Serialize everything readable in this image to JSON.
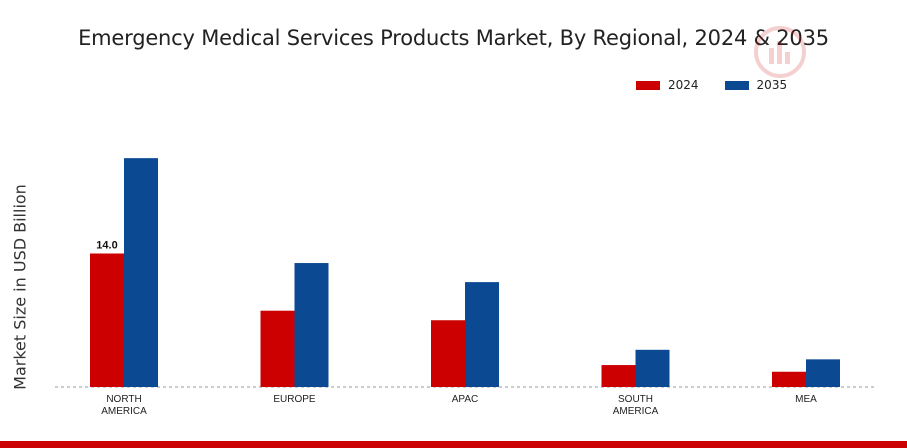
{
  "colors": {
    "series_2024": "#cc0000",
    "series_2035": "#0b4a92",
    "footer_bar": "#cc0000",
    "baseline": "#999999"
  },
  "watermark_icon": "logo-watermark-icon",
  "chart_data": {
    "type": "bar",
    "title": "Emergency Medical Services Products Market, By Regional, 2024 & 2035",
    "xlabel": "",
    "ylabel": "Market Size in USD Billion",
    "categories": [
      "NORTH\nAMERICA",
      "EUROPE",
      "APAC",
      "SOUTH\nAMERICA",
      "MEA"
    ],
    "series": [
      {
        "name": "2024",
        "values": [
          14.0,
          8.0,
          7.0,
          2.3,
          1.6
        ]
      },
      {
        "name": "2035",
        "values": [
          24.0,
          13.0,
          11.0,
          3.9,
          2.9
        ]
      }
    ],
    "data_labels": [
      {
        "series": 0,
        "category": 0,
        "text": "14.0"
      }
    ],
    "ylim": [
      0,
      28
    ],
    "grid": false,
    "legend_position": "top-right"
  }
}
